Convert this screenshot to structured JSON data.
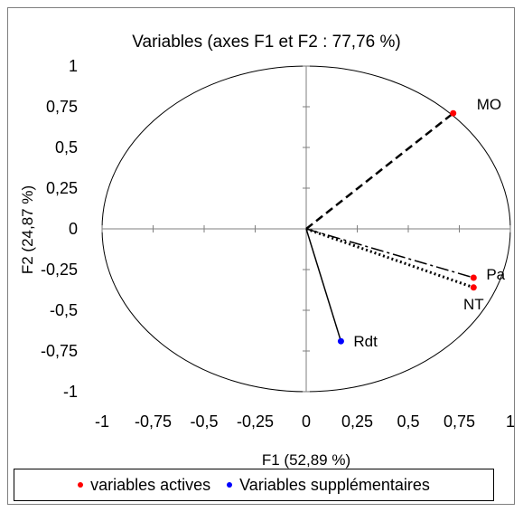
{
  "chart_data": {
    "type": "scatter",
    "title": "Variables (axes F1 et F2 : 77,76 %)",
    "xlabel": "F1 (52,89 %)",
    "ylabel": "F2 (24,87 %)",
    "xlim": [
      -1,
      1
    ],
    "ylim": [
      -1,
      1
    ],
    "x_ticks": [
      "-1",
      "-0,75",
      "-0,5",
      "-0,25",
      "0",
      "0,25",
      "0,5",
      "0,75",
      "1"
    ],
    "y_ticks": [
      "1",
      "0,75",
      "0,5",
      "0,25",
      "0",
      "-0,25",
      "-0,5",
      "-0,75",
      "-1"
    ],
    "grid": false,
    "correlation_circle": true,
    "legend_position": "bottom",
    "series": [
      {
        "name": "variables actives",
        "color": "#ff0000",
        "points": [
          {
            "label": "MO",
            "x": 0.72,
            "y": 0.71,
            "line": "dashed"
          },
          {
            "label": "Pa",
            "x": 0.82,
            "y": -0.3,
            "line": "dashdot"
          },
          {
            "label": "NT",
            "x": 0.82,
            "y": -0.36,
            "line": "dotted"
          }
        ]
      },
      {
        "name": "Variables supplémentaires",
        "color": "#0000ff",
        "points": [
          {
            "label": "Rdt",
            "x": 0.17,
            "y": -0.69,
            "line": "solid"
          }
        ]
      }
    ]
  },
  "legend": {
    "active_label": "variables actives",
    "supp_label": "Variables supplémentaires",
    "active_color": "#ff0000",
    "supp_color": "#0000ff"
  }
}
